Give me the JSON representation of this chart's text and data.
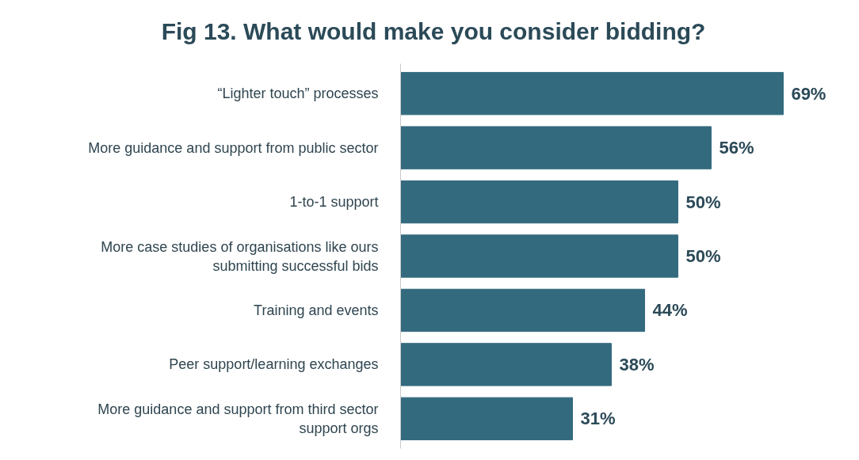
{
  "chart_data": {
    "type": "bar",
    "orientation": "horizontal",
    "title": "Fig 13. What would make you consider bidding?",
    "categories": [
      "“Lighter touch” processes",
      "More guidance and support from public sector",
      "1-to-1 support",
      "More case studies of organisations like ours submitting successful bids",
      "Training and events",
      "Peer support/learning exchanges",
      "More guidance and support from third sector support orgs"
    ],
    "values": [
      69,
      56,
      50,
      50,
      44,
      38,
      31
    ],
    "value_labels": [
      "69%",
      "56%",
      "50%",
      "50%",
      "44%",
      "38%",
      "31%"
    ],
    "color": "#336a7e",
    "grid": false
  }
}
